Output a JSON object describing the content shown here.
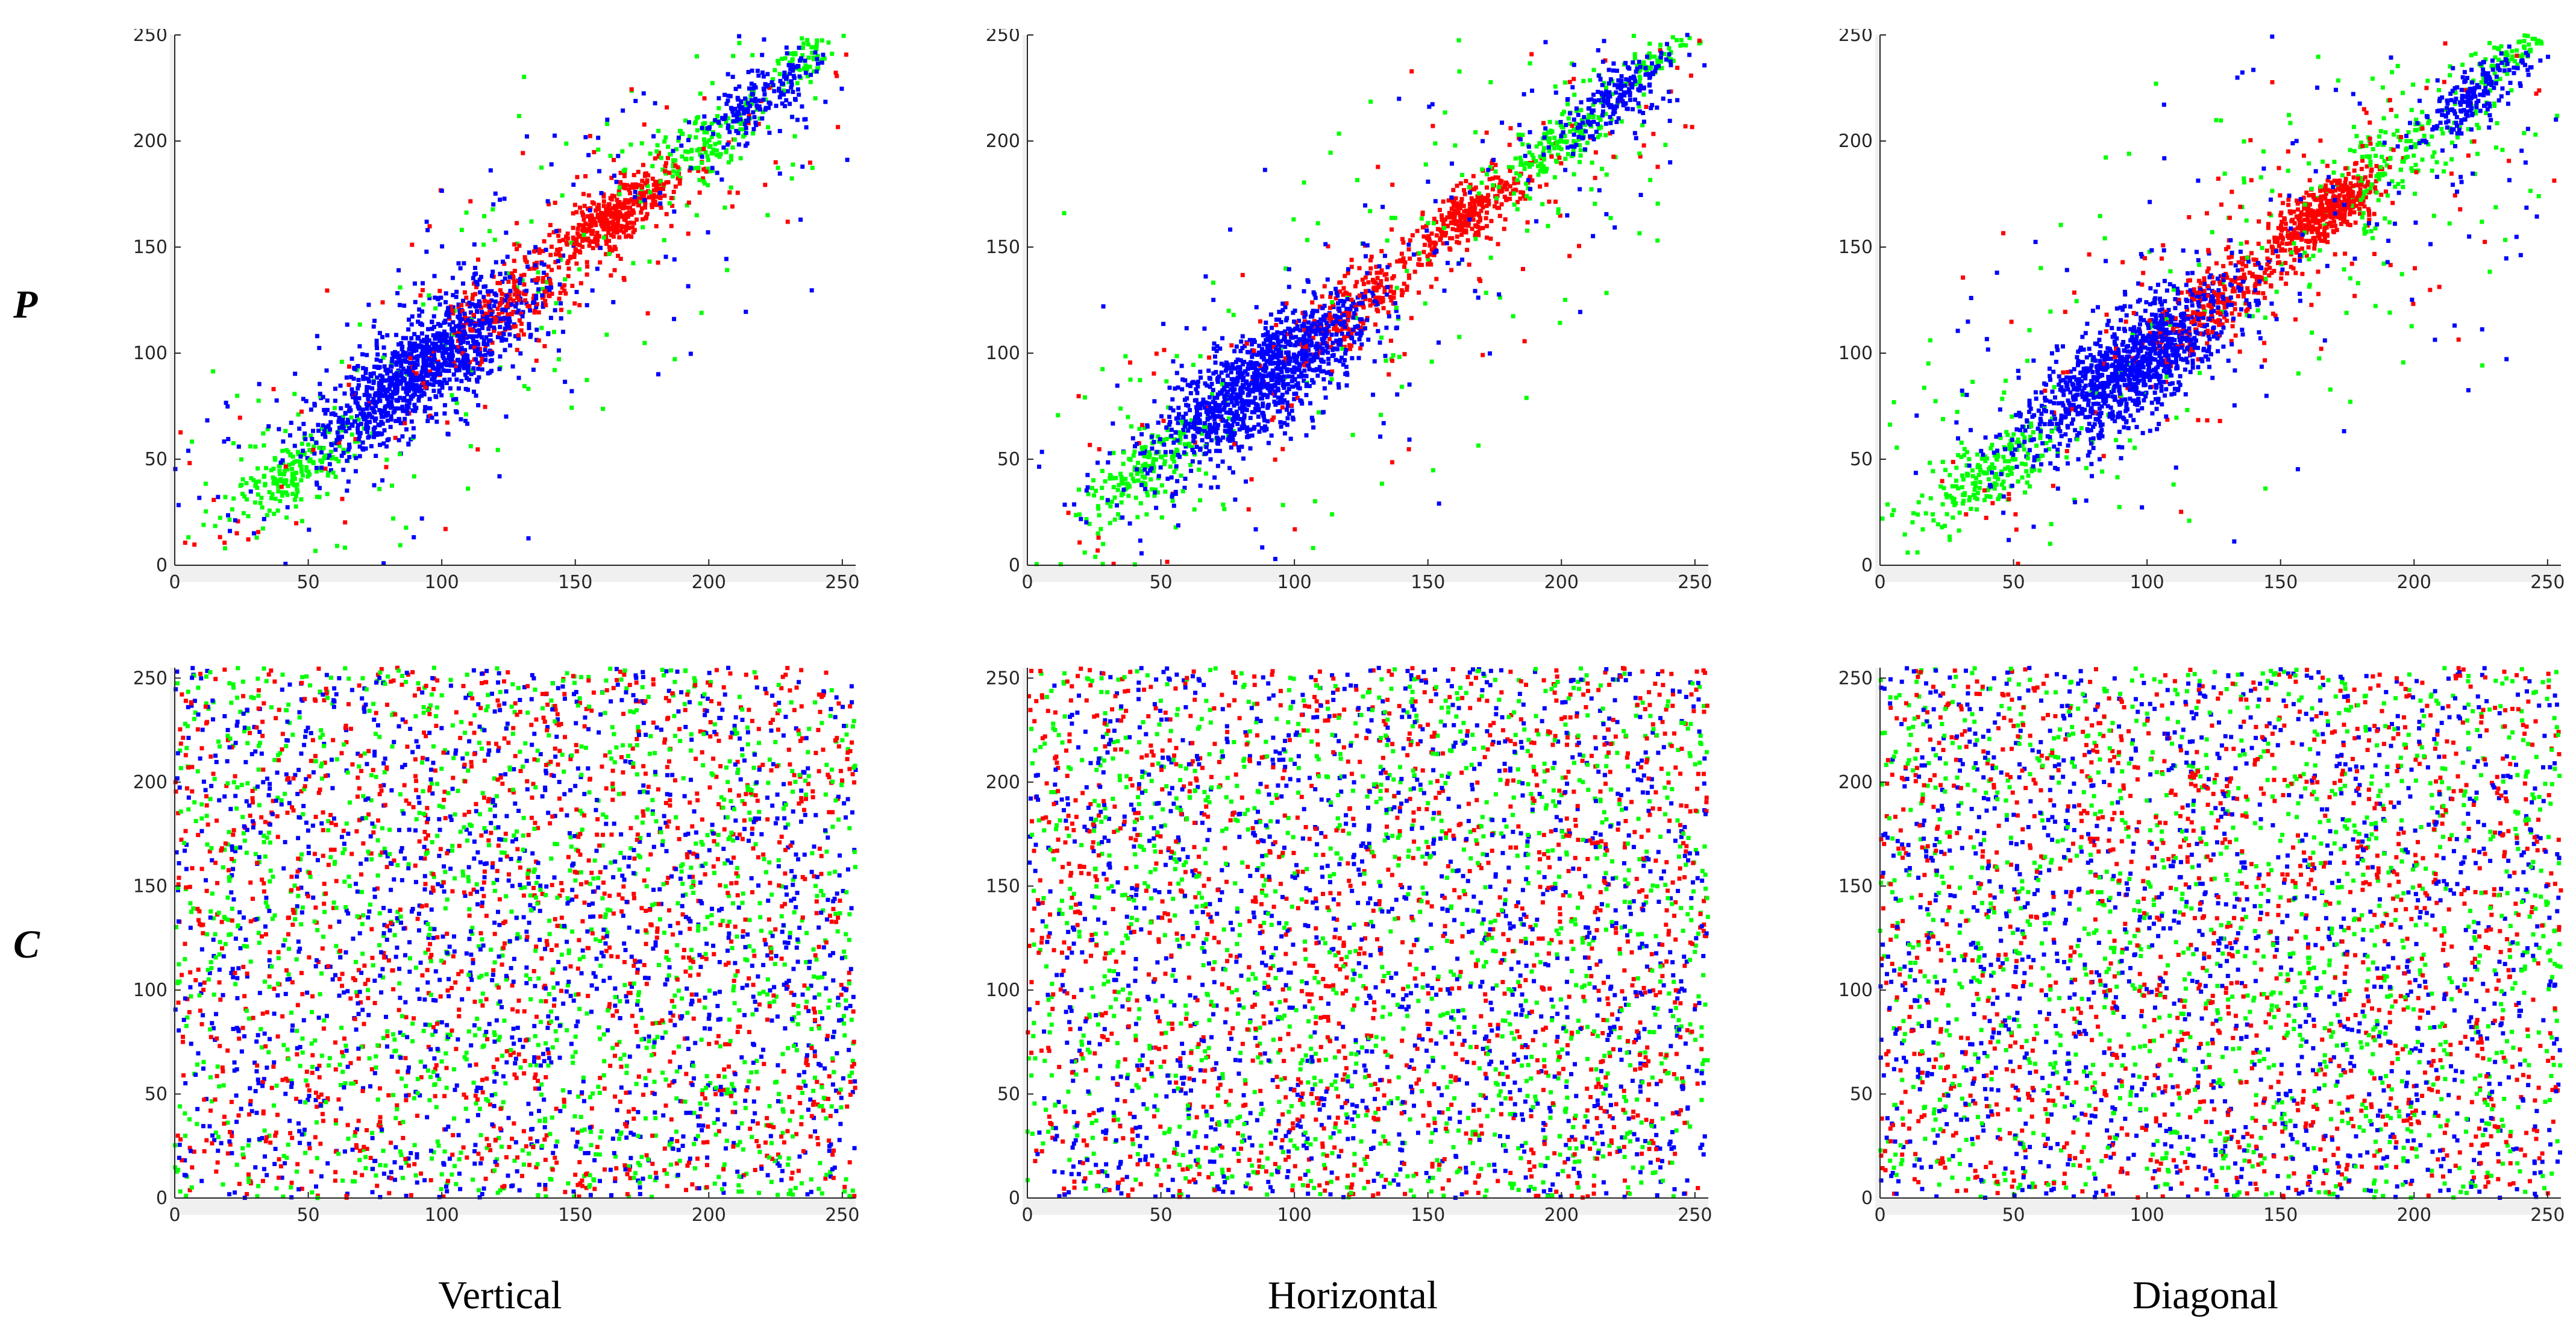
{
  "figure": {
    "row_labels": [
      "P",
      "C"
    ],
    "column_labels": [
      "Vertical",
      "Horizontal",
      "Diagonal"
    ]
  },
  "colors": {
    "red": "#ff0000",
    "green": "#00ff00",
    "blue": "#0000ff",
    "axes_bg": "#f0f0f0"
  },
  "chart_data": [
    {
      "type": "scatter",
      "row": "P",
      "column": "Vertical",
      "xlim": [
        0,
        255
      ],
      "ylim": [
        0,
        250
      ],
      "xticks": [
        0,
        50,
        100,
        150,
        200,
        250
      ],
      "yticks": [
        0,
        50,
        100,
        150,
        200,
        250
      ],
      "grid": false,
      "pattern": "correlated",
      "series": [
        {
          "color": "red",
          "clusters": [
            {
              "x": 165,
              "y": 165,
              "spread": 10,
              "n": 400
            },
            {
              "x": 125,
              "y": 123,
              "spread": 14,
              "n": 220
            },
            {
              "x": 140,
              "y": 140,
              "spread": 45,
              "n": 160,
              "along": 0.6
            }
          ]
        },
        {
          "color": "green",
          "clusters": [
            {
              "x": 45,
              "y": 45,
              "spread": 11,
              "n": 180
            },
            {
              "x": 200,
              "y": 200,
              "spread": 10,
              "n": 140
            },
            {
              "x": 235,
              "y": 237,
              "spread": 6,
              "n": 60
            },
            {
              "x": 120,
              "y": 120,
              "spread": 60,
              "n": 260,
              "along": 0.6
            }
          ]
        },
        {
          "color": "blue",
          "clusters": [
            {
              "x": 93,
              "y": 93,
              "spread": 18,
              "n": 1100
            },
            {
              "x": 220,
              "y": 220,
              "spread": 10,
              "n": 180
            },
            {
              "x": 130,
              "y": 130,
              "spread": 55,
              "n": 220,
              "along": 0.6
            }
          ]
        }
      ]
    },
    {
      "type": "scatter",
      "row": "P",
      "column": "Horizontal",
      "xlim": [
        0,
        255
      ],
      "ylim": [
        0,
        250
      ],
      "xticks": [
        0,
        50,
        100,
        150,
        200,
        250
      ],
      "yticks": [
        0,
        50,
        100,
        150,
        200,
        250
      ],
      "grid": false,
      "pattern": "correlated",
      "series": [
        {
          "color": "red",
          "clusters": [
            {
              "x": 165,
              "y": 165,
              "spread": 9,
              "n": 280
            },
            {
              "x": 125,
              "y": 123,
              "spread": 12,
              "n": 200
            },
            {
              "x": 150,
              "y": 150,
              "spread": 45,
              "n": 160,
              "along": 0.6
            }
          ]
        },
        {
          "color": "green",
          "clusters": [
            {
              "x": 45,
              "y": 45,
              "spread": 11,
              "n": 180
            },
            {
              "x": 200,
              "y": 200,
              "spread": 12,
              "n": 160
            },
            {
              "x": 235,
              "y": 238,
              "spread": 6,
              "n": 60
            },
            {
              "x": 120,
              "y": 120,
              "spread": 60,
              "n": 260,
              "along": 0.6
            }
          ]
        },
        {
          "color": "blue",
          "clusters": [
            {
              "x": 88,
              "y": 88,
              "spread": 18,
              "n": 1100
            },
            {
              "x": 220,
              "y": 220,
              "spread": 10,
              "n": 180
            },
            {
              "x": 130,
              "y": 130,
              "spread": 55,
              "n": 220,
              "along": 0.6
            }
          ]
        }
      ]
    },
    {
      "type": "scatter",
      "row": "P",
      "column": "Diagonal",
      "xlim": [
        0,
        255
      ],
      "ylim": [
        0,
        250
      ],
      "xticks": [
        0,
        50,
        100,
        150,
        200,
        250
      ],
      "yticks": [
        0,
        50,
        100,
        150,
        200,
        250
      ],
      "grid": false,
      "pattern": "correlated",
      "series": [
        {
          "color": "red",
          "clusters": [
            {
              "x": 165,
              "y": 165,
              "spread": 9,
              "n": 450
            },
            {
              "x": 125,
              "y": 123,
              "spread": 12,
              "n": 220
            },
            {
              "x": 150,
              "y": 150,
              "spread": 55,
              "n": 200,
              "along": 0.4
            }
          ]
        },
        {
          "color": "green",
          "clusters": [
            {
              "x": 40,
              "y": 42,
              "spread": 12,
              "n": 200
            },
            {
              "x": 195,
              "y": 195,
              "spread": 16,
              "n": 160
            },
            {
              "x": 235,
              "y": 238,
              "spread": 6,
              "n": 60
            },
            {
              "x": 140,
              "y": 140,
              "spread": 70,
              "n": 320,
              "along": 0.35
            }
          ]
        },
        {
          "color": "blue",
          "clusters": [
            {
              "x": 95,
              "y": 95,
              "spread": 18,
              "n": 1100
            },
            {
              "x": 220,
              "y": 220,
              "spread": 9,
              "n": 180
            },
            {
              "x": 140,
              "y": 140,
              "spread": 70,
              "n": 260,
              "along": 0.4
            }
          ]
        }
      ]
    },
    {
      "type": "scatter",
      "row": "C",
      "column": "Vertical",
      "xlim": [
        0,
        255
      ],
      "ylim": [
        0,
        255
      ],
      "xticks": [
        0,
        50,
        100,
        150,
        200,
        250
      ],
      "yticks": [
        0,
        50,
        100,
        150,
        200,
        250
      ],
      "grid": false,
      "pattern": "uniform",
      "series": [
        {
          "color": "red",
          "n": 1300
        },
        {
          "color": "green",
          "n": 1300
        },
        {
          "color": "blue",
          "n": 1300
        }
      ]
    },
    {
      "type": "scatter",
      "row": "C",
      "column": "Horizontal",
      "xlim": [
        0,
        255
      ],
      "ylim": [
        0,
        255
      ],
      "xticks": [
        0,
        50,
        100,
        150,
        200,
        250
      ],
      "yticks": [
        0,
        50,
        100,
        150,
        200,
        250
      ],
      "grid": false,
      "pattern": "uniform",
      "series": [
        {
          "color": "red",
          "n": 1300
        },
        {
          "color": "green",
          "n": 1300
        },
        {
          "color": "blue",
          "n": 1300
        }
      ]
    },
    {
      "type": "scatter",
      "row": "C",
      "column": "Diagonal",
      "xlim": [
        0,
        255
      ],
      "ylim": [
        0,
        255
      ],
      "xticks": [
        0,
        50,
        100,
        150,
        200,
        250
      ],
      "yticks": [
        0,
        50,
        100,
        150,
        200,
        250
      ],
      "grid": false,
      "pattern": "uniform",
      "series": [
        {
          "color": "red",
          "n": 1300
        },
        {
          "color": "green",
          "n": 1300
        },
        {
          "color": "blue",
          "n": 1300
        }
      ]
    }
  ]
}
